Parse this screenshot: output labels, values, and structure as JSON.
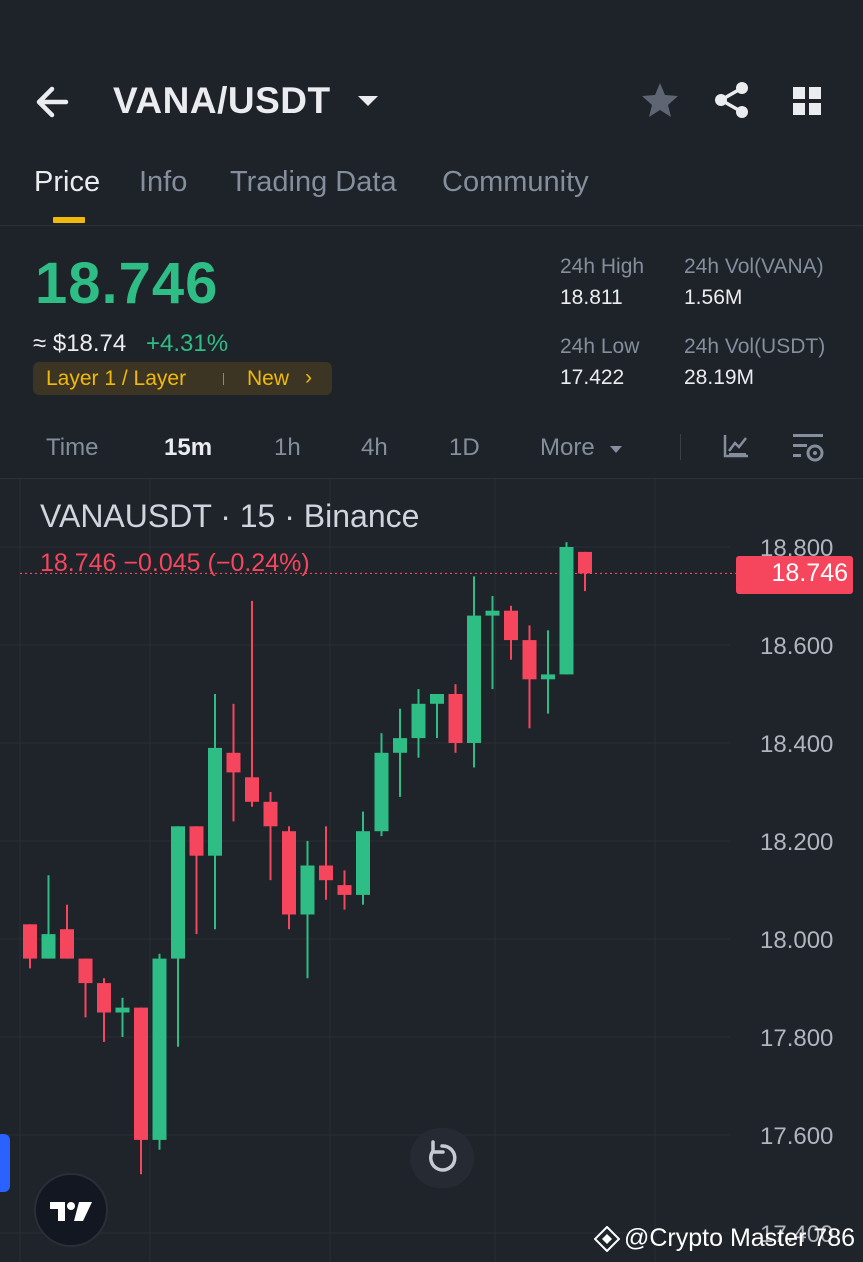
{
  "header": {
    "pair": "VANA/USDT",
    "icons": [
      "back-arrow-icon",
      "caret-down-icon",
      "star-icon",
      "share-icon",
      "grid-icon"
    ]
  },
  "tabs": [
    {
      "label": "Price",
      "active": true
    },
    {
      "label": "Info",
      "active": false
    },
    {
      "label": "Trading Data",
      "active": false
    },
    {
      "label": "Community",
      "active": false
    }
  ],
  "price": {
    "last": "18.746",
    "fiat": "≈ $18.74",
    "change": "+4.31%",
    "tag": "Layer 1 / Layer",
    "tag_new": "New",
    "tag_chevron": "›"
  },
  "stats": {
    "high_label": "24h High",
    "high_value": "18.811",
    "low_label": "24h Low",
    "low_value": "17.422",
    "vol_base_label": "24h Vol(VANA)",
    "vol_base_value": "1.56M",
    "vol_quote_label": "24h Vol(USDT)",
    "vol_quote_value": "28.19M"
  },
  "timeframes": {
    "items": [
      "Time",
      "15m",
      "1h",
      "4h",
      "1D",
      "More"
    ],
    "active": "15m",
    "icons": [
      "indicator-icon",
      "chart-settings-icon"
    ]
  },
  "chart": {
    "symbol_line": "VANAUSDT · 15 · Binance",
    "ohlc_line": "18.746  −0.045 (−0.24%)",
    "price_tag": "18.746",
    "watermark": "@Crypto Master 786",
    "colors": {
      "up": "#2ebd85",
      "down": "#f6465d",
      "bg": "#1f232a",
      "grid": "#2a2f37"
    }
  },
  "chart_data": {
    "type": "candlestick",
    "interval": "15m",
    "ylabels": [
      "18.800",
      "18.600",
      "18.400",
      "18.200",
      "18.000",
      "17.800",
      "17.600",
      "17.400"
    ],
    "yticks": [
      18.8,
      18.6,
      18.4,
      18.2,
      18.0,
      17.8,
      17.6,
      17.4
    ],
    "last_price": 18.746,
    "candles": [
      {
        "o": 18.03,
        "h": 18.03,
        "l": 17.94,
        "c": 17.96
      },
      {
        "o": 17.96,
        "h": 18.13,
        "l": 17.96,
        "c": 18.01
      },
      {
        "o": 18.02,
        "h": 18.07,
        "l": 17.96,
        "c": 17.96
      },
      {
        "o": 17.96,
        "h": 17.96,
        "l": 17.84,
        "c": 17.91
      },
      {
        "o": 17.91,
        "h": 17.92,
        "l": 17.79,
        "c": 17.85
      },
      {
        "o": 17.85,
        "h": 17.88,
        "l": 17.8,
        "c": 17.86
      },
      {
        "o": 17.86,
        "h": 17.86,
        "l": 17.52,
        "c": 17.59
      },
      {
        "o": 17.59,
        "h": 17.97,
        "l": 17.57,
        "c": 17.96
      },
      {
        "o": 17.96,
        "h": 18.23,
        "l": 17.78,
        "c": 18.23
      },
      {
        "o": 18.23,
        "h": 18.23,
        "l": 18.01,
        "c": 18.17
      },
      {
        "o": 18.17,
        "h": 18.5,
        "l": 18.02,
        "c": 18.39
      },
      {
        "o": 18.38,
        "h": 18.48,
        "l": 18.24,
        "c": 18.34
      },
      {
        "o": 18.33,
        "h": 18.69,
        "l": 18.27,
        "c": 18.28
      },
      {
        "o": 18.28,
        "h": 18.3,
        "l": 18.12,
        "c": 18.23
      },
      {
        "o": 18.22,
        "h": 18.23,
        "l": 18.02,
        "c": 18.05
      },
      {
        "o": 18.05,
        "h": 18.2,
        "l": 17.92,
        "c": 18.15
      },
      {
        "o": 18.15,
        "h": 18.23,
        "l": 18.08,
        "c": 18.12
      },
      {
        "o": 18.11,
        "h": 18.14,
        "l": 18.06,
        "c": 18.09
      },
      {
        "o": 18.09,
        "h": 18.26,
        "l": 18.07,
        "c": 18.22
      },
      {
        "o": 18.22,
        "h": 18.42,
        "l": 18.21,
        "c": 18.38
      },
      {
        "o": 18.38,
        "h": 18.47,
        "l": 18.29,
        "c": 18.41
      },
      {
        "o": 18.41,
        "h": 18.51,
        "l": 18.37,
        "c": 18.48
      },
      {
        "o": 18.48,
        "h": 18.5,
        "l": 18.41,
        "c": 18.5
      },
      {
        "o": 18.5,
        "h": 18.52,
        "l": 18.38,
        "c": 18.4
      },
      {
        "o": 18.4,
        "h": 18.74,
        "l": 18.35,
        "c": 18.66
      },
      {
        "o": 18.66,
        "h": 18.7,
        "l": 18.51,
        "c": 18.67
      },
      {
        "o": 18.67,
        "h": 18.68,
        "l": 18.57,
        "c": 18.61
      },
      {
        "o": 18.61,
        "h": 18.64,
        "l": 18.43,
        "c": 18.53
      },
      {
        "o": 18.53,
        "h": 18.63,
        "l": 18.46,
        "c": 18.54
      },
      {
        "o": 18.54,
        "h": 18.81,
        "l": 18.54,
        "c": 18.8
      },
      {
        "o": 18.79,
        "h": 18.79,
        "l": 18.71,
        "c": 18.746
      }
    ]
  }
}
